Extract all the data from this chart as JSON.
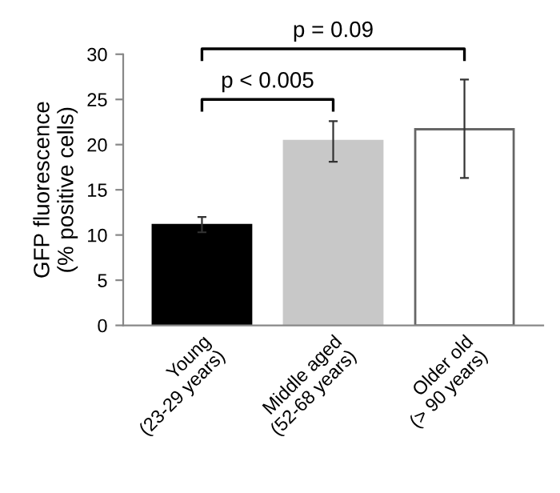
{
  "chart_data": {
    "type": "bar",
    "ylabel": "GFP fluorescence\n(% positive cells)",
    "categories": [
      "Young\n(23-29 years)",
      "Middle aged\n(52-68 years)",
      "Older old\n(> 90 years)"
    ],
    "values": [
      11.1,
      20.4,
      21.7
    ],
    "colors": [
      "#000000",
      "#c8c8c8",
      "#ffffff"
    ],
    "errors": [
      [
        10.3,
        12.0
      ],
      [
        18.1,
        22.6
      ],
      [
        16.3,
        27.2
      ]
    ],
    "ylim": [
      0,
      30
    ],
    "yticks": [
      0,
      5,
      10,
      15,
      20,
      25,
      30
    ],
    "grid": false,
    "legend": false,
    "annotations": [
      "p < 0.005",
      "p = 0.09"
    ]
  }
}
